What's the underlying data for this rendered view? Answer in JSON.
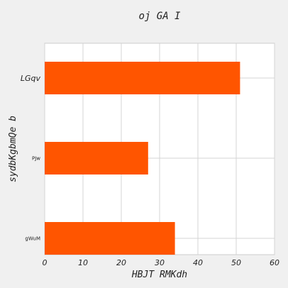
{
  "chart_data": {
    "type": "bar",
    "orientation": "horizontal",
    "title": "oj GA I",
    "xlabel": "HBJT RMKdh",
    "ylabel": "sydbKgbmQe b",
    "categories": [
      "LGqv",
      "PJw",
      "gWuM"
    ],
    "values": [
      51,
      27,
      34
    ],
    "xlim": [
      0,
      60
    ],
    "xticks": [
      0,
      10,
      20,
      30,
      40,
      50,
      60
    ],
    "grid": true,
    "bar_color": "#ff5500"
  }
}
